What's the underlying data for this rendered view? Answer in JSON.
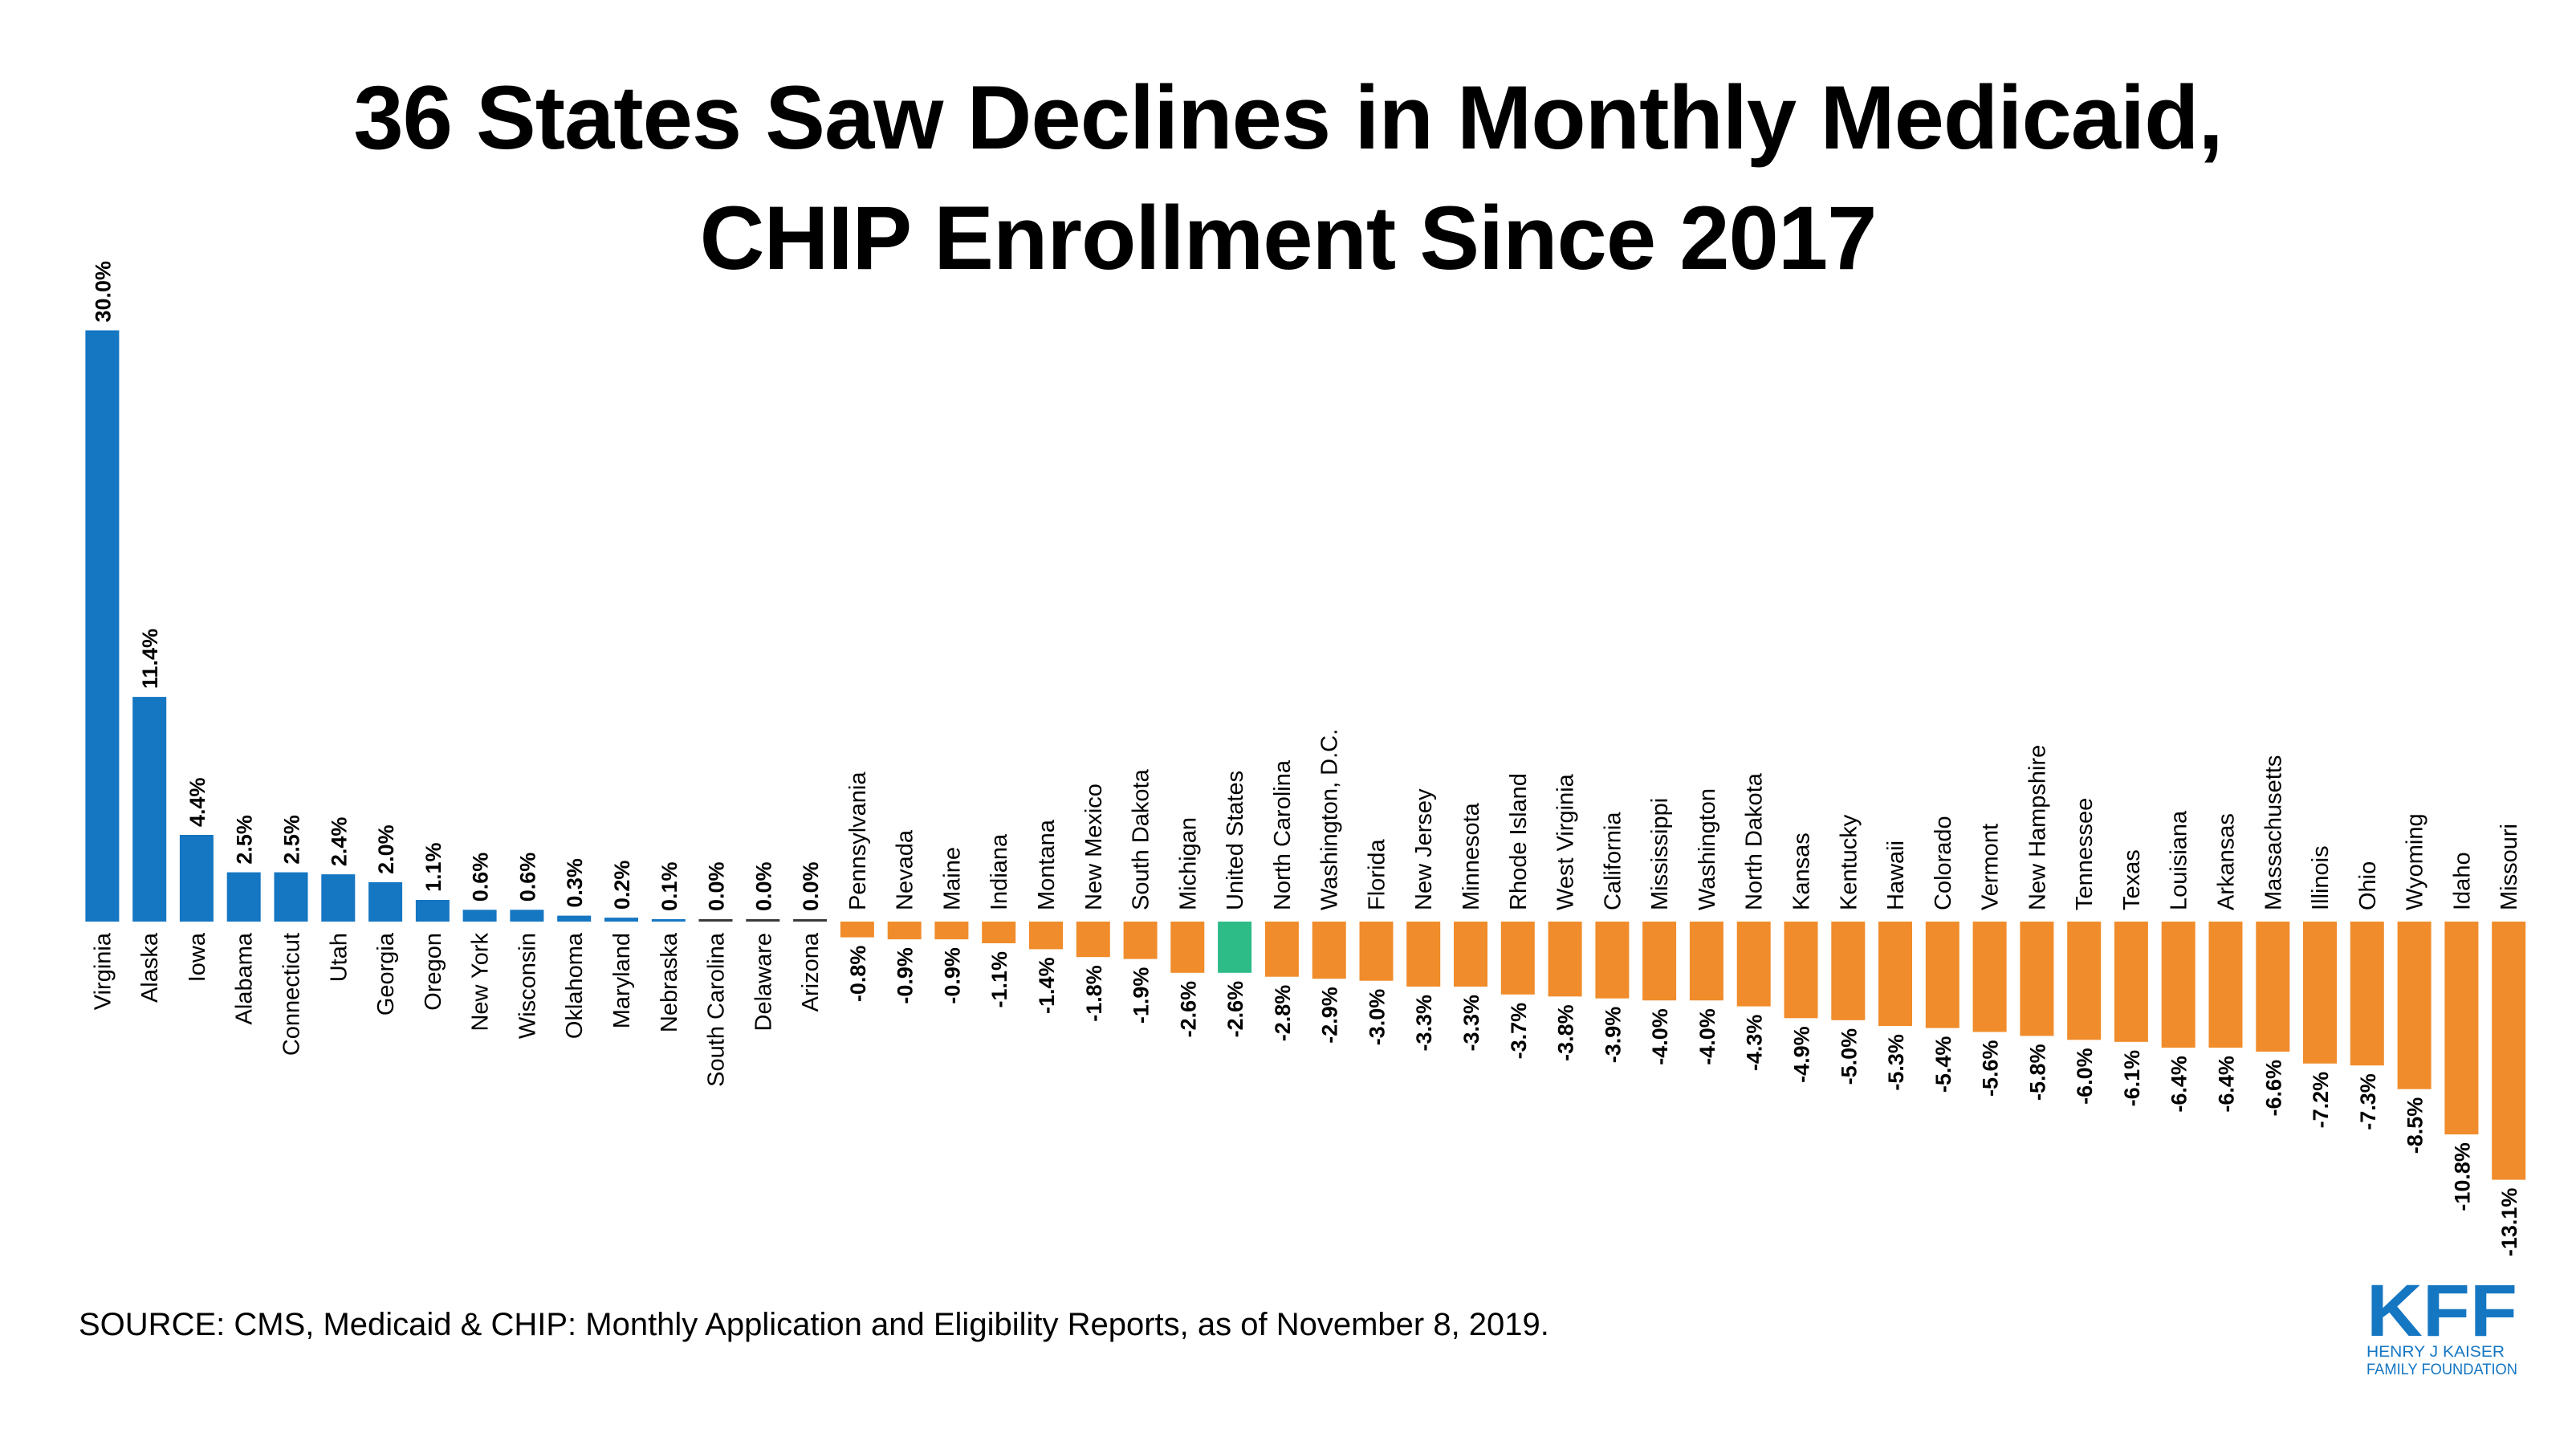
{
  "title_lines": [
    "36 States Saw Declines in Monthly Medicaid,",
    "CHIP Enrollment Since 2017"
  ],
  "source": "SOURCE: CMS, Medicaid & CHIP: Monthly Application and Eligibility Reports, as of November 8, 2019.",
  "logo": {
    "mark": "KFF",
    "line1": "HENRY J KAISER",
    "line2": "FAMILY FOUNDATION"
  },
  "colors": {
    "positive": "#1576c2",
    "negative": "#f08c2b",
    "us": "#2dbb88",
    "zero": "#3a3a3a"
  },
  "chart_data": {
    "type": "bar",
    "ylim": [
      -13.1,
      30.0
    ],
    "categories": [
      "Virginia",
      "Alaska",
      "Iowa",
      "Alabama",
      "Connecticut",
      "Utah",
      "Georgia",
      "Oregon",
      "New York",
      "Wisconsin",
      "Oklahoma",
      "Maryland",
      "Nebraska",
      "South Carolina",
      "Delaware",
      "Arizona",
      "Pennsylvania",
      "Nevada",
      "Maine",
      "Indiana",
      "Montana",
      "New Mexico",
      "South Dakota",
      "Michigan",
      "United States",
      "North Carolina",
      "Washington, D.C.",
      "Florida",
      "New Jersey",
      "Minnesota",
      "Rhode Island",
      "West Virginia",
      "California",
      "Mississippi",
      "Washington",
      "North Dakota",
      "Kansas",
      "Kentucky",
      "Hawaii",
      "Colorado",
      "Vermont",
      "New Hampshire",
      "Tennessee",
      "Texas",
      "Louisiana",
      "Arkansas",
      "Massachusetts",
      "Illinois",
      "Ohio",
      "Wyoming",
      "Idaho",
      "Missouri"
    ],
    "values": [
      30.0,
      11.4,
      4.4,
      2.5,
      2.5,
      2.4,
      2.0,
      1.1,
      0.6,
      0.6,
      0.3,
      0.2,
      0.1,
      0.0,
      0.0,
      0.0,
      -0.8,
      -0.9,
      -0.9,
      -1.1,
      -1.4,
      -1.8,
      -1.9,
      -2.6,
      -2.6,
      -2.8,
      -2.9,
      -3.0,
      -3.3,
      -3.3,
      -3.7,
      -3.8,
      -3.9,
      -4.0,
      -4.0,
      -4.3,
      -4.9,
      -5.0,
      -5.3,
      -5.4,
      -5.6,
      -5.8,
      -6.0,
      -6.1,
      -6.4,
      -6.4,
      -6.6,
      -7.2,
      -7.3,
      -8.5,
      -10.8,
      -13.1
    ],
    "labels": [
      "30.0%",
      "11.4%",
      "4.4%",
      "2.5%",
      "2.5%",
      "2.4%",
      "2.0%",
      "1.1%",
      "0.6%",
      "0.6%",
      "0.3%",
      "0.2%",
      "0.1%",
      "0.0%",
      "0.0%",
      "0.0%",
      "-0.8%",
      "-0.9%",
      "-0.9%",
      "-1.1%",
      "-1.4%",
      "-1.8%",
      "-1.9%",
      "-2.6%",
      "-2.6%",
      "-2.8%",
      "-2.9%",
      "-3.0%",
      "-3.3%",
      "-3.3%",
      "-3.7%",
      "-3.8%",
      "-3.9%",
      "-4.0%",
      "-4.0%",
      "-4.3%",
      "-4.9%",
      "-5.0%",
      "-5.3%",
      "-5.4%",
      "-5.6%",
      "-5.8%",
      "-6.0%",
      "-6.1%",
      "-6.4%",
      "-6.4%",
      "-6.6%",
      "-7.2%",
      "-7.3%",
      "-8.5%",
      "-10.8%",
      "-13.1%"
    ],
    "highlight": "United States",
    "grid": false
  }
}
